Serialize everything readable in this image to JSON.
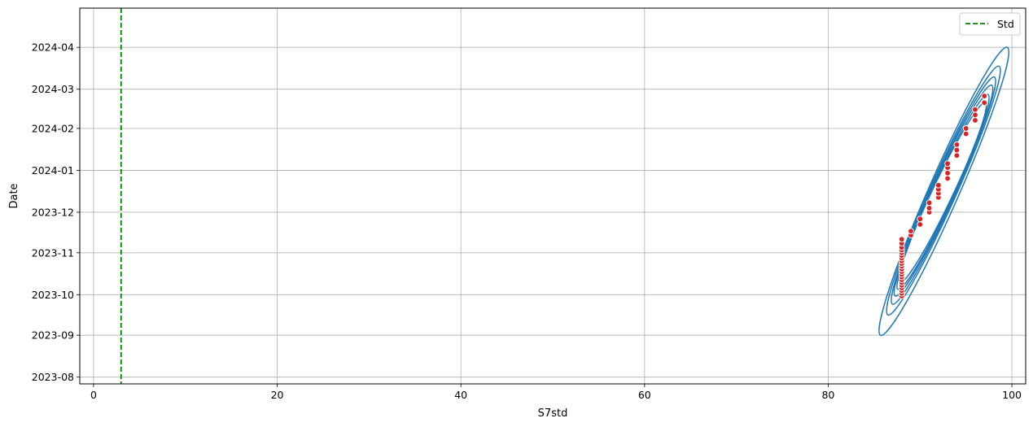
{
  "chart_data": {
    "type": "scatter",
    "title": "",
    "xlabel": "S7std",
    "ylabel": "Date",
    "xlim": [
      -1.5,
      101.5
    ],
    "x_ticks": [
      0,
      20,
      40,
      60,
      80,
      100
    ],
    "ylim": [
      "2023-07-27",
      "2024-04-30"
    ],
    "y_ticks": [
      "2023-08",
      "2023-09",
      "2023-10",
      "2023-11",
      "2023-12",
      "2024-01",
      "2024-02",
      "2024-03",
      "2024-04"
    ],
    "grid": true,
    "legend": {
      "position": "top-right",
      "entries": [
        "Std"
      ]
    },
    "std_line": {
      "label": "Std",
      "x": 3,
      "color": "#008000",
      "style": "dashed"
    },
    "scatter_color": "#d62728",
    "scatter_edge_color": "#ffffff",
    "kde_color": "#1f77b4",
    "points": [
      {
        "x": 88,
        "date": "2023-09-30"
      },
      {
        "x": 88,
        "date": "2023-10-02"
      },
      {
        "x": 88,
        "date": "2023-10-04"
      },
      {
        "x": 88,
        "date": "2023-10-06"
      },
      {
        "x": 88,
        "date": "2023-10-08"
      },
      {
        "x": 88,
        "date": "2023-10-10"
      },
      {
        "x": 88,
        "date": "2023-10-12"
      },
      {
        "x": 88,
        "date": "2023-10-14"
      },
      {
        "x": 88,
        "date": "2023-10-16"
      },
      {
        "x": 88,
        "date": "2023-10-18"
      },
      {
        "x": 88,
        "date": "2023-10-20"
      },
      {
        "x": 88,
        "date": "2023-10-22"
      },
      {
        "x": 88,
        "date": "2023-10-24"
      },
      {
        "x": 88,
        "date": "2023-10-26"
      },
      {
        "x": 88,
        "date": "2023-10-28"
      },
      {
        "x": 88,
        "date": "2023-10-30"
      },
      {
        "x": 88,
        "date": "2023-11-01"
      },
      {
        "x": 88,
        "date": "2023-11-03"
      },
      {
        "x": 88,
        "date": "2023-11-05"
      },
      {
        "x": 88,
        "date": "2023-11-08"
      },
      {
        "x": 88,
        "date": "2023-11-11"
      },
      {
        "x": 89,
        "date": "2023-11-14"
      },
      {
        "x": 89,
        "date": "2023-11-17"
      },
      {
        "x": 90,
        "date": "2023-11-22"
      },
      {
        "x": 90,
        "date": "2023-11-26"
      },
      {
        "x": 91,
        "date": "2023-12-01"
      },
      {
        "x": 91,
        "date": "2023-12-04"
      },
      {
        "x": 91,
        "date": "2023-12-08"
      },
      {
        "x": 92,
        "date": "2023-12-12"
      },
      {
        "x": 92,
        "date": "2023-12-15"
      },
      {
        "x": 92,
        "date": "2023-12-18"
      },
      {
        "x": 92,
        "date": "2023-12-21"
      },
      {
        "x": 93,
        "date": "2023-12-26"
      },
      {
        "x": 93,
        "date": "2023-12-30"
      },
      {
        "x": 93,
        "date": "2024-01-03"
      },
      {
        "x": 93,
        "date": "2024-01-06"
      },
      {
        "x": 94,
        "date": "2024-01-12"
      },
      {
        "x": 94,
        "date": "2024-01-16"
      },
      {
        "x": 94,
        "date": "2024-01-20"
      },
      {
        "x": 95,
        "date": "2024-01-28"
      },
      {
        "x": 95,
        "date": "2024-02-01"
      },
      {
        "x": 96,
        "date": "2024-02-07"
      },
      {
        "x": 96,
        "date": "2024-02-11"
      },
      {
        "x": 96,
        "date": "2024-02-15"
      },
      {
        "x": 97,
        "date": "2024-02-20"
      },
      {
        "x": 97,
        "date": "2024-02-25"
      }
    ],
    "kde_levels": [
      {
        "x_extent": [
          85.7,
          99.5
        ],
        "date_extent": [
          "2023-09-01",
          "2024-04-01"
        ]
      },
      {
        "x_extent": [
          86.5,
          98.6
        ],
        "date_extent": [
          "2023-09-16",
          "2024-03-18"
        ]
      },
      {
        "x_extent": [
          87.0,
          98.1
        ],
        "date_extent": [
          "2023-09-24",
          "2024-03-10"
        ]
      },
      {
        "x_extent": [
          87.3,
          97.8
        ],
        "date_extent": [
          "2023-09-30",
          "2024-03-04"
        ]
      },
      {
        "x_extent": [
          87.6,
          97.4
        ],
        "date_extent": [
          "2023-10-05",
          "2024-02-26"
        ]
      },
      {
        "x_extent": [
          87.8,
          97.1
        ],
        "date_extent": [
          "2023-10-10",
          "2024-02-20"
        ]
      }
    ]
  }
}
